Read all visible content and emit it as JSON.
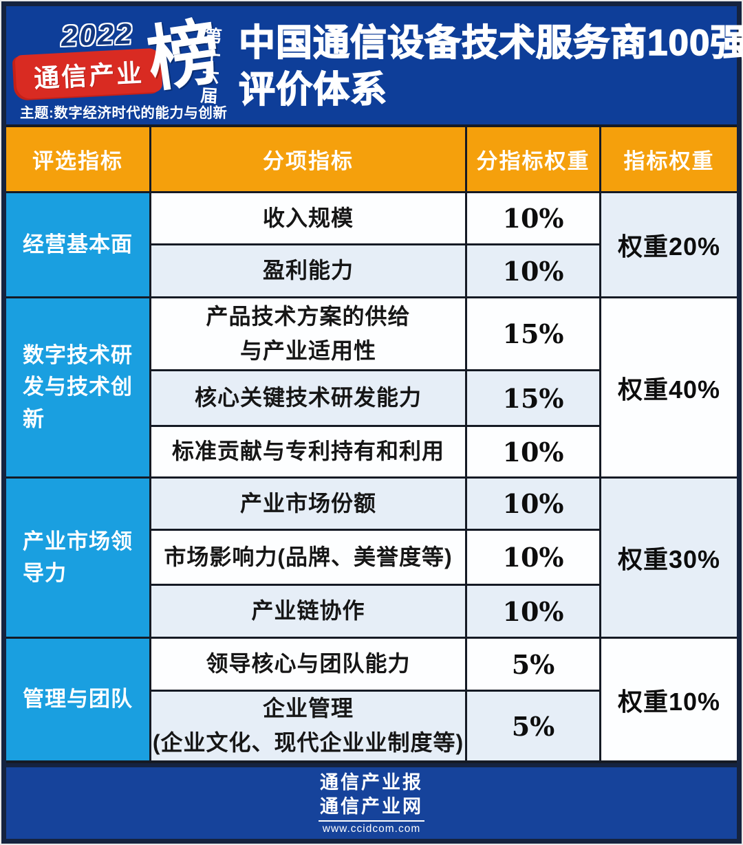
{
  "logo": {
    "year": "2022",
    "brand": "通信产业",
    "stamp": "榜",
    "edition": "第十六届",
    "theme": "主题:数字经济时代的能力与创新"
  },
  "title": {
    "line1": "中国通信设备技术服务商100强",
    "line2": "评价体系"
  },
  "table": {
    "headers": [
      "评选指标",
      "分项指标",
      "分指标权重",
      "指标权重"
    ],
    "groups": [
      {
        "name": "经营基本面",
        "weight": "权重20%",
        "weight_shade": "blue",
        "rows": [
          {
            "label": "收入规模",
            "value": "10%",
            "shade": "white"
          },
          {
            "label": "盈利能力",
            "value": "10%",
            "shade": "blue"
          }
        ]
      },
      {
        "name": "数字技术研发与技术创新",
        "weight": "权重40%",
        "weight_shade": "white",
        "rows": [
          {
            "label": "产品技术方案的供给\n与产业适用性",
            "value": "15%",
            "shade": "white"
          },
          {
            "label": "核心关键技术研发能力",
            "value": "15%",
            "shade": "blue"
          },
          {
            "label": "标准贡献与专利持有和利用",
            "value": "10%",
            "shade": "white"
          }
        ]
      },
      {
        "name": "产业市场领导力",
        "weight": "权重30%",
        "weight_shade": "blue",
        "rows": [
          {
            "label": "产业市场份额",
            "value": "10%",
            "shade": "blue"
          },
          {
            "label": "市场影响力(品牌、美誉度等)",
            "value": "10%",
            "shade": "white"
          },
          {
            "label": "产业链协作",
            "value": "10%",
            "shade": "blue"
          }
        ]
      },
      {
        "name": "管理与团队",
        "weight": "权重10%",
        "weight_shade": "white",
        "rows": [
          {
            "label": "领导核心与团队能力",
            "value": "5%",
            "shade": "white"
          },
          {
            "label": "企业管理\n(企业文化、现代企业业制度等)",
            "value": "5%",
            "shade": "blue"
          }
        ]
      }
    ]
  },
  "footer": {
    "paper": "通信产业报",
    "site": "通信产业网",
    "url": "www.ccidcom.com"
  },
  "colors": {
    "background_blue": "#0e3e99",
    "frame_navy": "#15233f",
    "header_orange": "#f5a00c",
    "group_cyan": "#1a9fe0",
    "row_white": "#fdfeff",
    "row_light_blue": "#e6eef7",
    "brand_red": "#d92b22",
    "footer_blue": "#16439b"
  }
}
